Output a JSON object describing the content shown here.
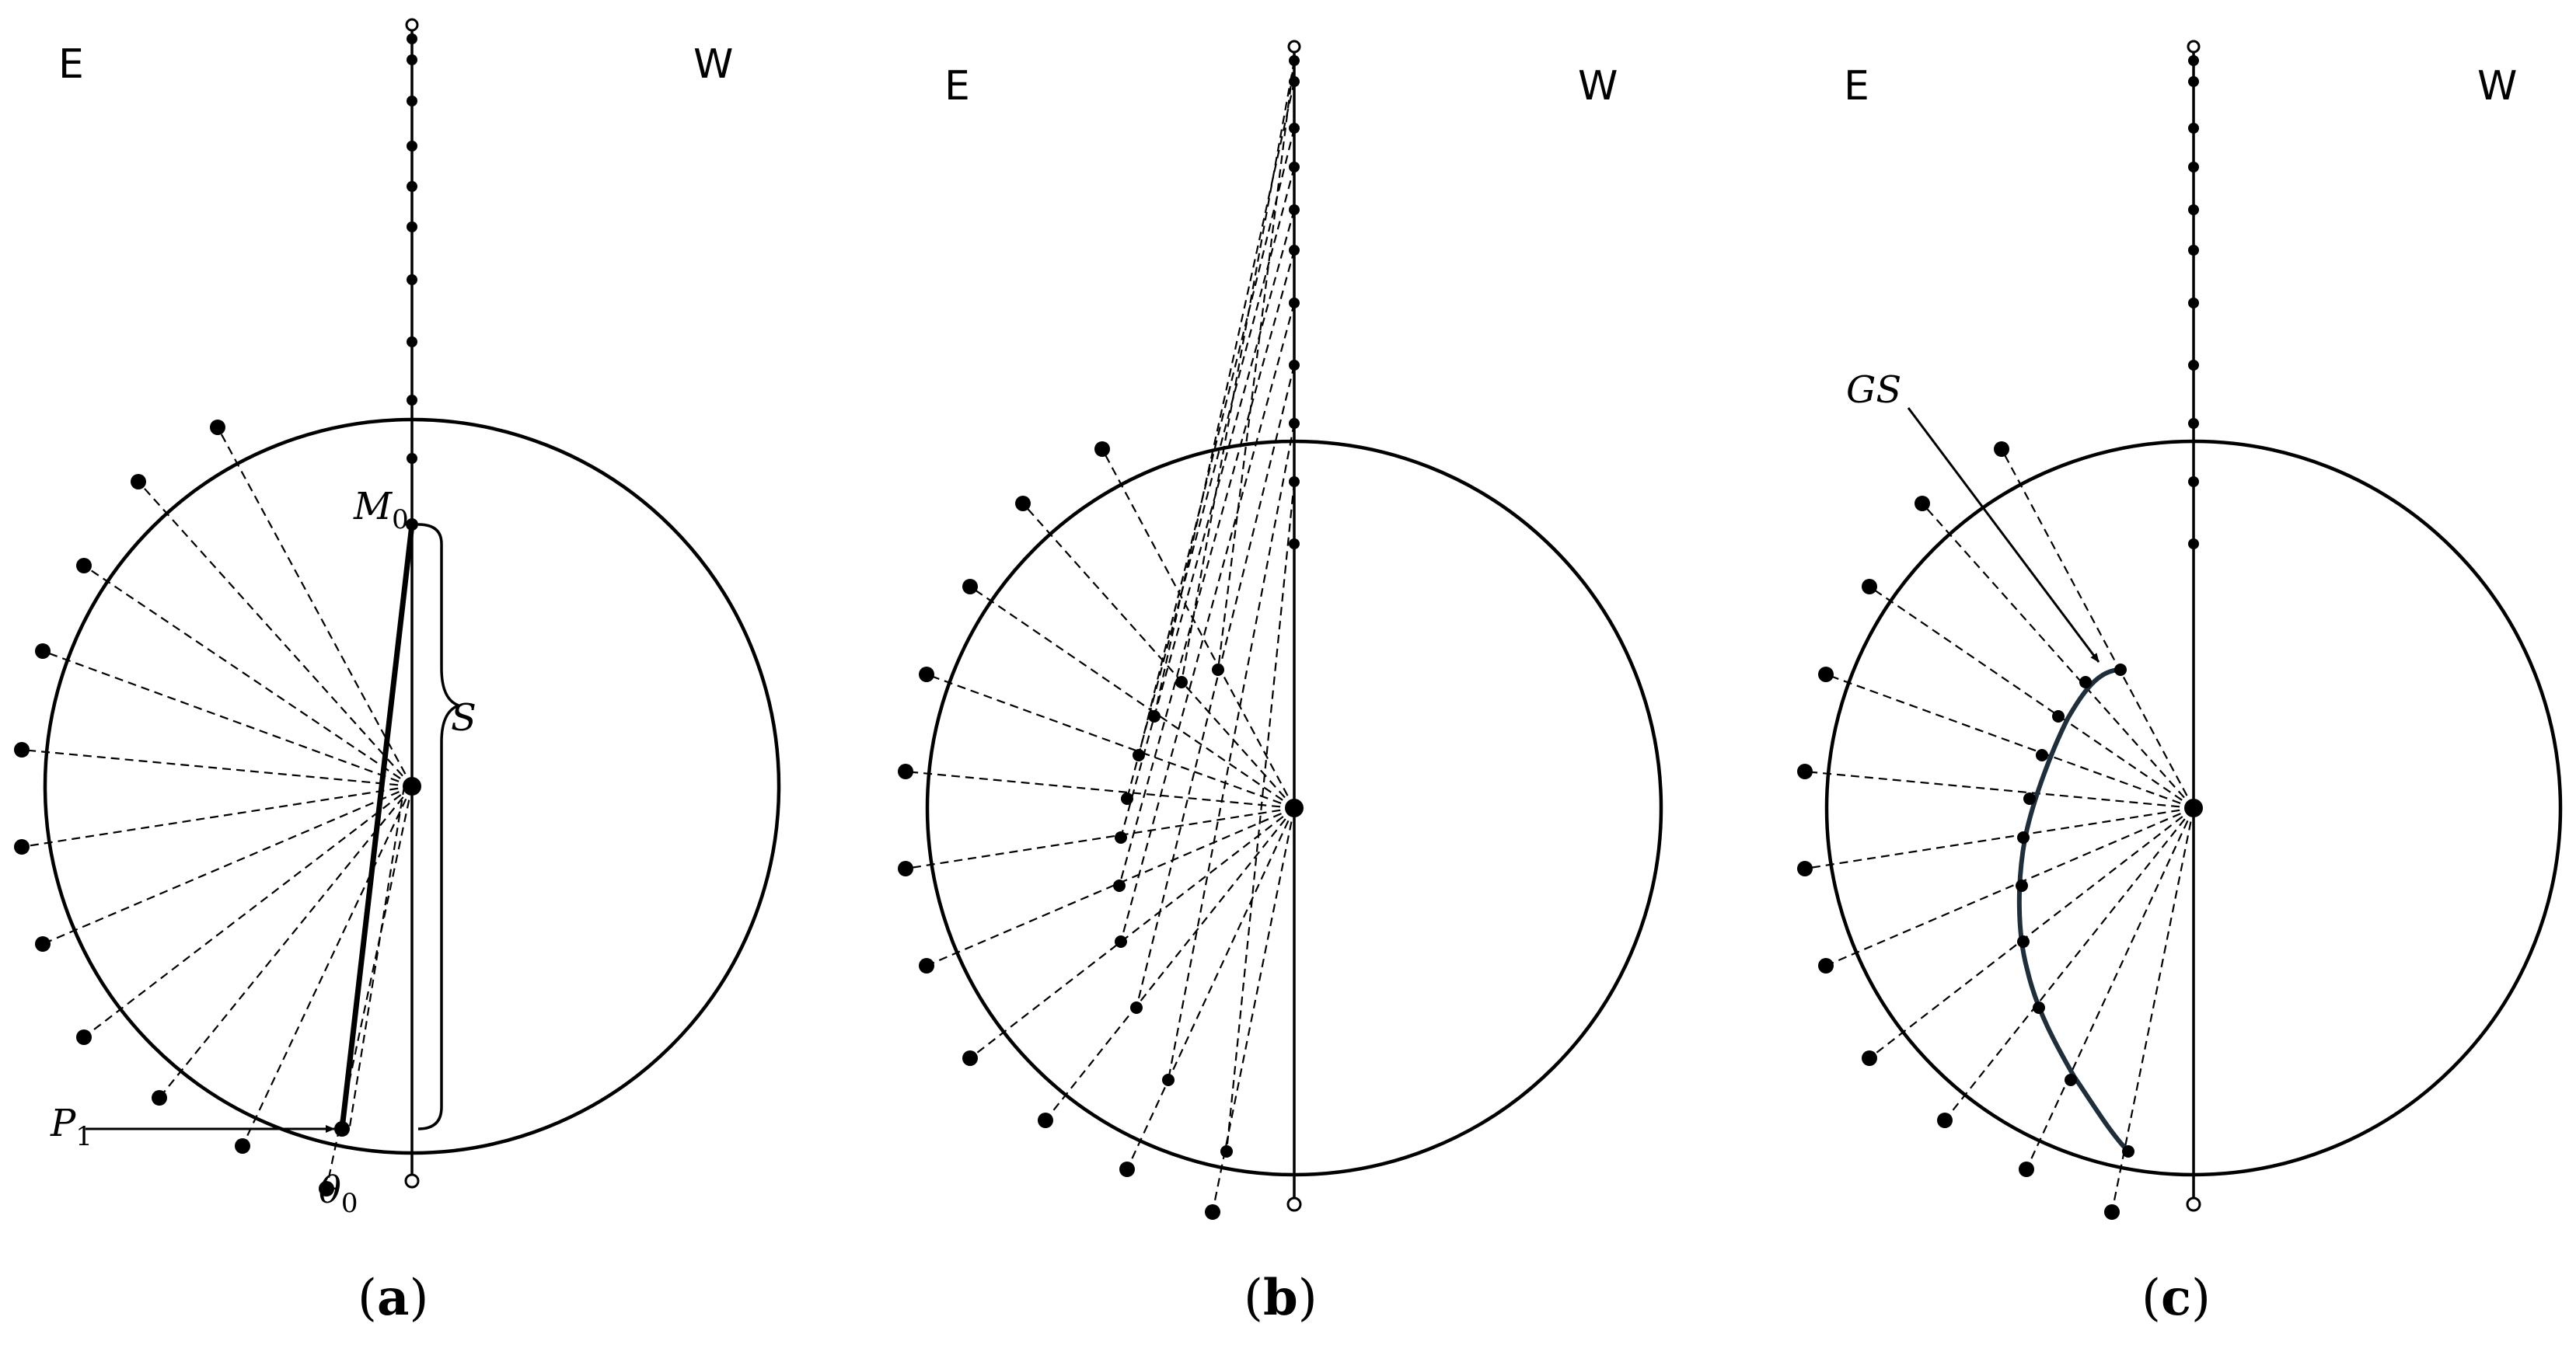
{
  "panels": [
    {
      "id": "a",
      "east_label": "E",
      "west_label": "W",
      "caption_open": "(",
      "caption_letter": "a",
      "caption_close": ")",
      "m0_main": "M",
      "m0_sub": "0",
      "s_label": "S",
      "p1_main": "P",
      "p1_sub": "1",
      "theta_main": "θ",
      "theta_sub": "0"
    },
    {
      "id": "b",
      "east_label": "E",
      "west_label": "W",
      "caption_open": "(",
      "caption_letter": "b",
      "caption_close": ")"
    },
    {
      "id": "c",
      "east_label": "E",
      "west_label": "W",
      "caption_open": "(",
      "caption_letter": "c",
      "caption_close": ")",
      "gs_label": "GS"
    }
  ]
}
